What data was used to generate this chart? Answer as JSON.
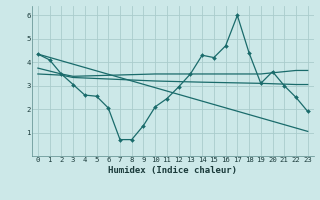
{
  "background_color": "#cce8e8",
  "grid_color": "#aacccc",
  "line_color": "#1a6b6b",
  "marker_color": "#1a6b6b",
  "xlabel": "Humidex (Indice chaleur)",
  "xlim": [
    -0.5,
    23.5
  ],
  "ylim": [
    0,
    6.4
  ],
  "xticks": [
    0,
    1,
    2,
    3,
    4,
    5,
    6,
    7,
    8,
    9,
    10,
    11,
    12,
    13,
    14,
    15,
    16,
    17,
    18,
    19,
    20,
    21,
    22,
    23
  ],
  "yticks": [
    1,
    2,
    3,
    4,
    5,
    6
  ],
  "series": [
    {
      "x": [
        0,
        1,
        2,
        3,
        4,
        5,
        6,
        7,
        8,
        9,
        10,
        11,
        12,
        13,
        14,
        15,
        16,
        17,
        18,
        19,
        20,
        21,
        22,
        23
      ],
      "y": [
        4.35,
        4.1,
        3.5,
        3.05,
        2.6,
        2.55,
        2.05,
        0.7,
        0.7,
        1.3,
        2.1,
        2.45,
        2.95,
        3.5,
        4.3,
        4.2,
        4.7,
        6.0,
        4.4,
        3.1,
        3.6,
        3.0,
        2.5,
        1.9
      ],
      "marker": true
    },
    {
      "x": [
        0,
        2,
        3,
        10,
        14,
        19,
        22,
        23
      ],
      "y": [
        3.75,
        3.5,
        3.4,
        3.5,
        3.5,
        3.5,
        3.65,
        3.65
      ],
      "marker": false
    },
    {
      "x": [
        0,
        2,
        3,
        10,
        14,
        19,
        22,
        23
      ],
      "y": [
        3.5,
        3.45,
        3.35,
        3.2,
        3.15,
        3.1,
        3.05,
        3.05
      ],
      "marker": false
    },
    {
      "x": [
        0,
        23
      ],
      "y": [
        4.35,
        1.05
      ],
      "marker": false
    }
  ]
}
